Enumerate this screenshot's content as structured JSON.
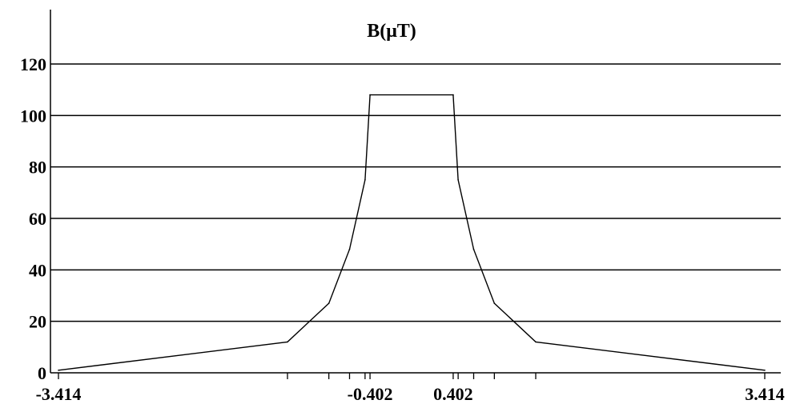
{
  "chart_data": {
    "type": "line",
    "title": "B(μT)",
    "xlabel": "",
    "ylabel": "",
    "xlim": [
      -3.414,
      3.414
    ],
    "ylim": [
      0,
      120
    ],
    "y_ticks": [
      0,
      20,
      40,
      60,
      80,
      100,
      120
    ],
    "y_tick_labels": [
      "0",
      "20",
      "40",
      "60",
      "80",
      "100",
      "120"
    ],
    "x_ticks": [
      -3.414,
      -1.2,
      -0.8,
      -0.6,
      -0.45,
      -0.402,
      0.402,
      0.45,
      0.6,
      0.8,
      1.2,
      3.414
    ],
    "x_labels": [
      {
        "value": -3.414,
        "text": "-3.414"
      },
      {
        "value": -0.402,
        "text": "-0.402"
      },
      {
        "value": 0.402,
        "text": "0.402"
      },
      {
        "value": 3.414,
        "text": "3.414"
      }
    ],
    "grid": "horizontal",
    "series": [
      {
        "x": [
          -3.414,
          -1.2,
          -0.8,
          -0.6,
          -0.45,
          -0.402,
          0.402,
          0.45,
          0.6,
          0.8,
          1.2,
          3.414
        ],
        "y": [
          1,
          12,
          27,
          48,
          75,
          108,
          108,
          75,
          48,
          27,
          12,
          1
        ]
      }
    ],
    "line_color": "#000000"
  }
}
